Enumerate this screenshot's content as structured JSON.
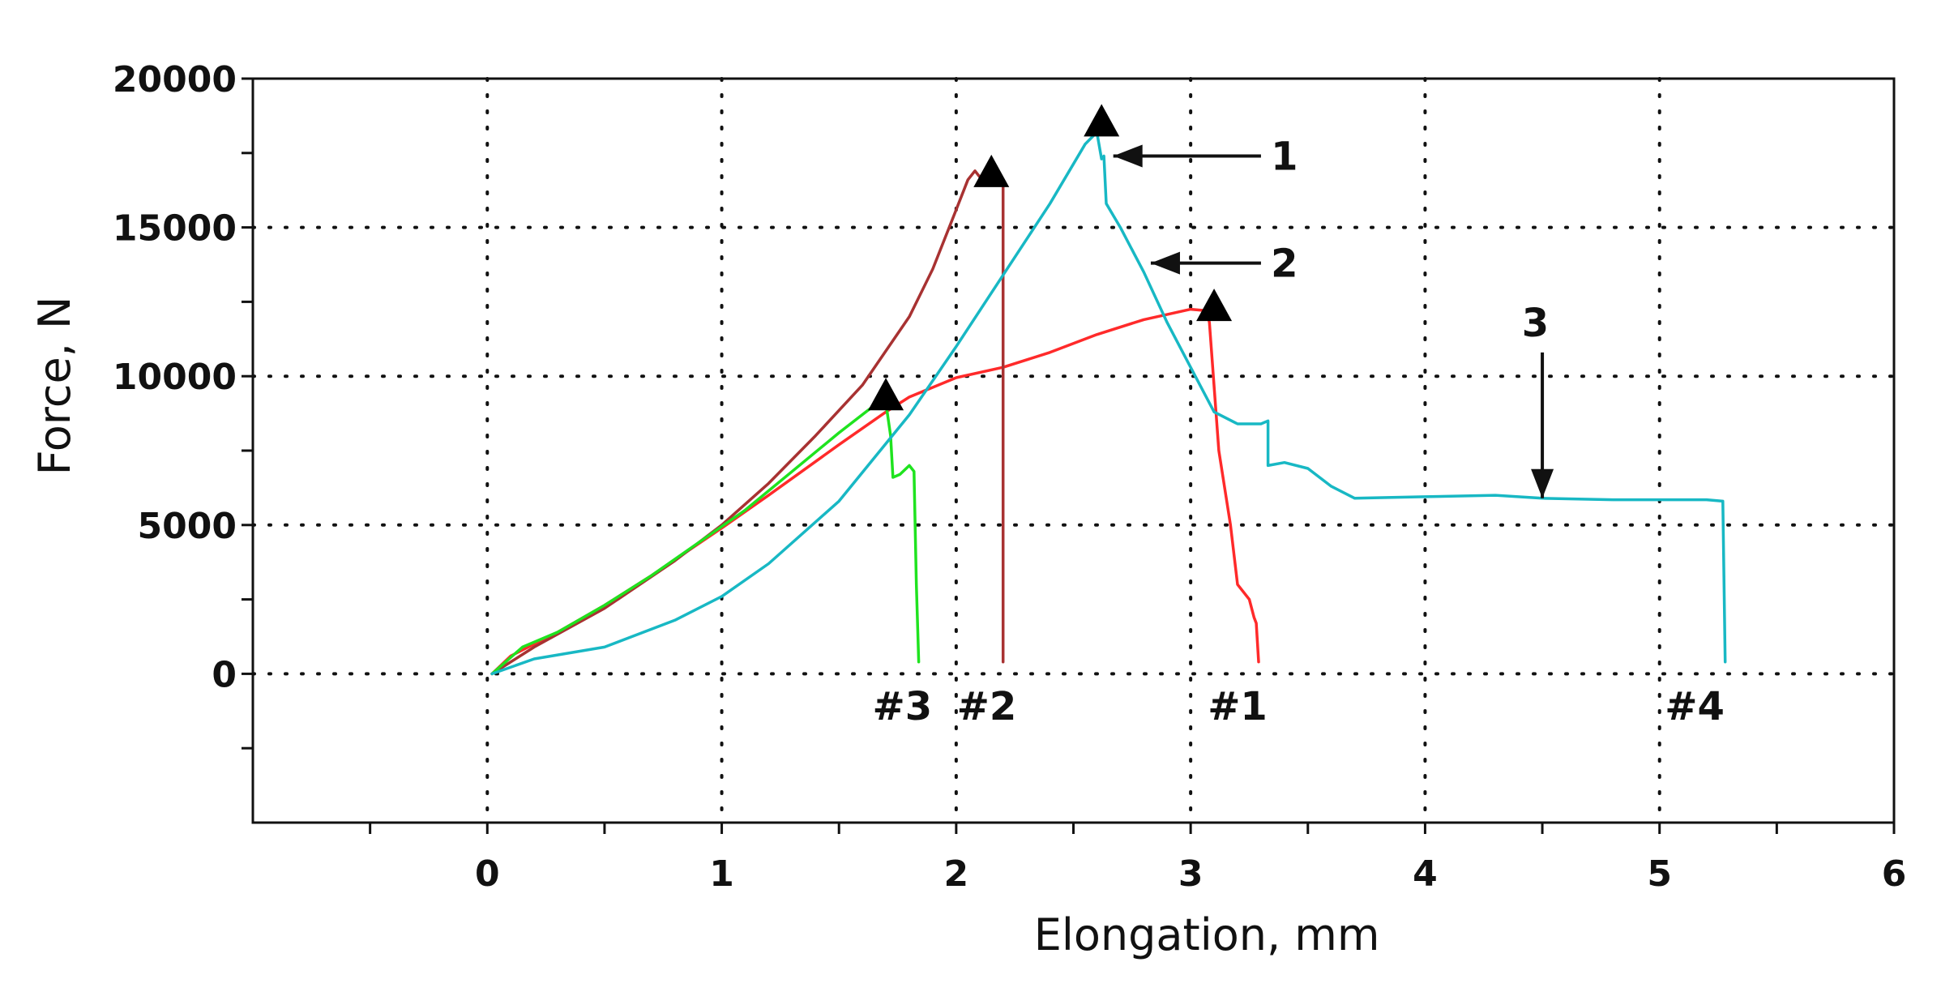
{
  "chart_data": {
    "type": "line",
    "title": "",
    "xlabel": "Elongation, mm",
    "ylabel": "Force, N",
    "xlim": [
      -1,
      6
    ],
    "ylim": [
      -5000,
      20000
    ],
    "grid": "dotted",
    "x_ticks": [
      0,
      1,
      2,
      3,
      4,
      5,
      6
    ],
    "x_tick_labels": [
      "0",
      "1",
      "2",
      "3",
      "4",
      "5",
      "6"
    ],
    "x_minor_ticks": [
      -0.5,
      0.5,
      1.5,
      2.5,
      3.5,
      4.5,
      5.5
    ],
    "y_ticks": [
      0,
      5000,
      10000,
      15000,
      20000
    ],
    "y_tick_labels": [
      "0",
      "5000",
      "10000",
      "15000",
      "20000"
    ],
    "y_minor_ticks": [
      -2500,
      2500,
      7500,
      12500,
      17500
    ],
    "series": [
      {
        "name": "#1",
        "color": "#ff2a2a",
        "peak": [
          3.1,
          12400
        ],
        "label_pos": [
          3.2,
          -1100
        ],
        "points": [
          [
            0.02,
            0
          ],
          [
            0.1,
            600
          ],
          [
            0.3,
            1400
          ],
          [
            0.5,
            2300
          ],
          [
            0.7,
            3300
          ],
          [
            1.0,
            4900
          ],
          [
            1.2,
            6000
          ],
          [
            1.5,
            7700
          ],
          [
            1.7,
            8800
          ],
          [
            1.8,
            9300
          ],
          [
            2.0,
            9950
          ],
          [
            2.2,
            10300
          ],
          [
            2.4,
            10800
          ],
          [
            2.6,
            11400
          ],
          [
            2.8,
            11900
          ],
          [
            3.0,
            12250
          ],
          [
            3.07,
            12200
          ],
          [
            3.08,
            11800
          ],
          [
            3.12,
            7500
          ],
          [
            3.17,
            5000
          ],
          [
            3.2,
            3000
          ],
          [
            3.25,
            2500
          ],
          [
            3.27,
            1900
          ],
          [
            3.28,
            1700
          ],
          [
            3.29,
            400
          ]
        ]
      },
      {
        "name": "#2",
        "color": "#a83232",
        "peak": [
          2.15,
          16900
        ],
        "label_pos": [
          2.13,
          -1100
        ],
        "points": [
          [
            0.02,
            0
          ],
          [
            0.2,
            900
          ],
          [
            0.5,
            2200
          ],
          [
            0.8,
            3800
          ],
          [
            1.0,
            5000
          ],
          [
            1.2,
            6400
          ],
          [
            1.4,
            8000
          ],
          [
            1.6,
            9700
          ],
          [
            1.8,
            12000
          ],
          [
            1.9,
            13600
          ],
          [
            2.0,
            15600
          ],
          [
            2.05,
            16600
          ],
          [
            2.08,
            16900
          ],
          [
            2.1,
            16700
          ],
          [
            2.12,
            16800
          ],
          [
            2.17,
            16700
          ],
          [
            2.2,
            16600
          ],
          [
            2.2,
            400
          ]
        ]
      },
      {
        "name": "#3",
        "color": "#1fe31f",
        "peak": [
          1.7,
          9400
        ],
        "label_pos": [
          1.77,
          -1100
        ],
        "points": [
          [
            0.02,
            0
          ],
          [
            0.15,
            900
          ],
          [
            0.3,
            1400
          ],
          [
            0.5,
            2300
          ],
          [
            0.7,
            3300
          ],
          [
            0.9,
            4400
          ],
          [
            1.1,
            5500
          ],
          [
            1.3,
            6800
          ],
          [
            1.5,
            8100
          ],
          [
            1.68,
            9200
          ],
          [
            1.7,
            9100
          ],
          [
            1.72,
            8000
          ],
          [
            1.73,
            6600
          ],
          [
            1.76,
            6700
          ],
          [
            1.8,
            7000
          ],
          [
            1.82,
            6800
          ],
          [
            1.83,
            3000
          ],
          [
            1.84,
            400
          ]
        ]
      },
      {
        "name": "#4",
        "color": "#18b8c4",
        "peak": [
          2.62,
          18600
        ],
        "label_pos": [
          5.15,
          -1100
        ],
        "points": [
          [
            0.02,
            0
          ],
          [
            0.2,
            500
          ],
          [
            0.5,
            900
          ],
          [
            0.8,
            1800
          ],
          [
            1.0,
            2600
          ],
          [
            1.2,
            3700
          ],
          [
            1.5,
            5800
          ],
          [
            1.8,
            8700
          ],
          [
            2.0,
            11000
          ],
          [
            2.2,
            13400
          ],
          [
            2.4,
            15800
          ],
          [
            2.55,
            17800
          ],
          [
            2.6,
            18200
          ],
          [
            2.62,
            17300
          ],
          [
            2.63,
            17400
          ],
          [
            2.64,
            15800
          ],
          [
            2.7,
            15000
          ],
          [
            2.8,
            13500
          ],
          [
            2.9,
            11800
          ],
          [
            3.0,
            10300
          ],
          [
            3.1,
            8800
          ],
          [
            3.2,
            8400
          ],
          [
            3.3,
            8400
          ],
          [
            3.33,
            8500
          ],
          [
            3.33,
            7000
          ],
          [
            3.4,
            7100
          ],
          [
            3.5,
            6900
          ],
          [
            3.6,
            6300
          ],
          [
            3.7,
            5900
          ],
          [
            4.0,
            5950
          ],
          [
            4.3,
            6000
          ],
          [
            4.5,
            5900
          ],
          [
            4.8,
            5850
          ],
          [
            5.0,
            5850
          ],
          [
            5.2,
            5850
          ],
          [
            5.27,
            5800
          ],
          [
            5.28,
            400
          ]
        ]
      }
    ],
    "annotations": [
      {
        "label": "1",
        "tip": [
          2.67,
          17400
        ],
        "tail": [
          3.3,
          17400
        ],
        "text_at": [
          3.4,
          17400
        ]
      },
      {
        "label": "2",
        "tip": [
          2.83,
          13800
        ],
        "tail": [
          3.3,
          13800
        ],
        "text_at": [
          3.4,
          13800
        ]
      },
      {
        "label": "3",
        "tip": [
          4.5,
          5900
        ],
        "tail": [
          4.5,
          10800
        ],
        "text_at": [
          4.47,
          11800
        ]
      }
    ]
  }
}
